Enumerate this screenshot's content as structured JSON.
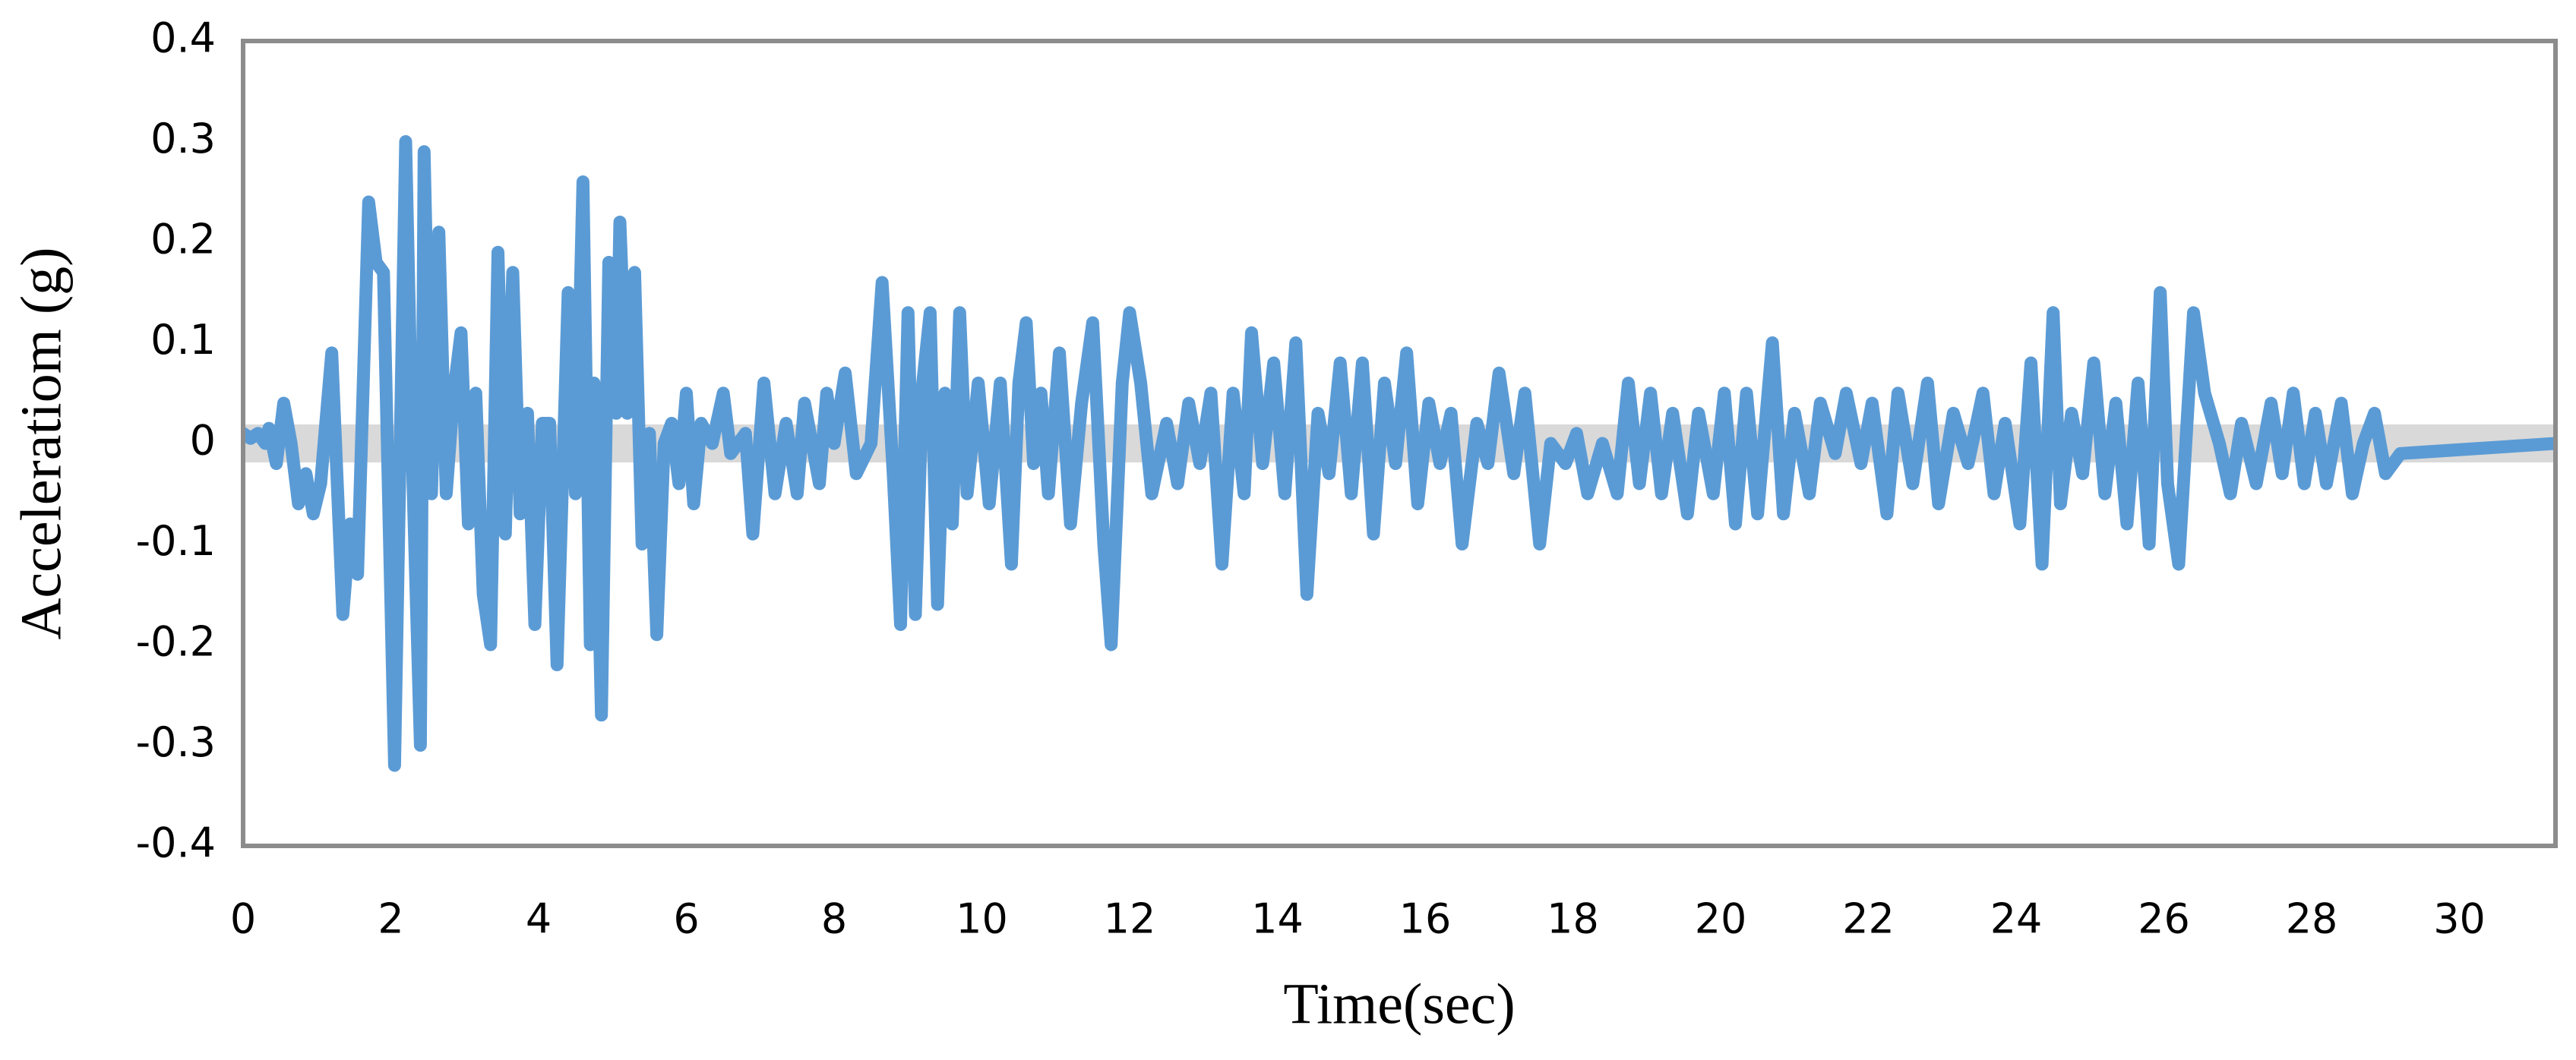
{
  "chart_data": {
    "type": "line",
    "x_label": "Time(sec)",
    "y_label": "Acceleratiom (g)",
    "xlim": [
      0,
      31.3
    ],
    "ylim": [
      -0.4,
      0.4
    ],
    "xticks": [
      0,
      2,
      4,
      6,
      8,
      10,
      12,
      14,
      16,
      18,
      20,
      22,
      24,
      26,
      28,
      30
    ],
    "yticks": [
      -0.4,
      -0.3,
      -0.2,
      -0.1,
      0,
      0.1,
      0.2,
      0.3,
      0.4
    ],
    "grid": false,
    "series": [
      {
        "color": "#d9d9d9",
        "x": [
          0,
          31.3
        ],
        "values": [
          0,
          0
        ]
      },
      {
        "color": "#5b9bd5",
        "x": [
          0,
          0.1,
          0.2,
          0.3,
          0.35,
          0.45,
          0.55,
          0.65,
          0.75,
          0.85,
          0.95,
          1.05,
          1.2,
          1.35,
          1.45,
          1.55,
          1.7,
          1.8,
          1.9,
          2.05,
          2.2,
          2.3,
          2.4,
          2.45,
          2.55,
          2.65,
          2.75,
          2.85,
          2.95,
          3.05,
          3.15,
          3.25,
          3.35,
          3.45,
          3.55,
          3.65,
          3.75,
          3.85,
          3.95,
          4.05,
          4.15,
          4.25,
          4.4,
          4.5,
          4.6,
          4.7,
          4.75,
          4.85,
          4.95,
          5.05,
          5.1,
          5.2,
          5.3,
          5.4,
          5.5,
          5.6,
          5.7,
          5.8,
          5.9,
          6.0,
          6.1,
          6.2,
          6.35,
          6.5,
          6.6,
          6.8,
          6.9,
          7.05,
          7.2,
          7.35,
          7.5,
          7.6,
          7.8,
          7.9,
          8.0,
          8.15,
          8.3,
          8.5,
          8.65,
          8.8,
          8.9,
          9.0,
          9.1,
          9.2,
          9.3,
          9.4,
          9.5,
          9.6,
          9.7,
          9.8,
          9.95,
          10.1,
          10.25,
          10.4,
          10.5,
          10.6,
          10.7,
          10.8,
          10.9,
          11.05,
          11.2,
          11.35,
          11.5,
          11.65,
          11.75,
          11.9,
          12.0,
          12.15,
          12.3,
          12.5,
          12.65,
          12.8,
          12.95,
          13.1,
          13.25,
          13.4,
          13.55,
          13.65,
          13.8,
          13.95,
          14.1,
          14.25,
          14.4,
          14.55,
          14.7,
          14.85,
          15.0,
          15.15,
          15.3,
          15.45,
          15.6,
          15.75,
          15.9,
          16.05,
          16.2,
          16.35,
          16.5,
          16.7,
          16.85,
          17.0,
          17.2,
          17.35,
          17.55,
          17.7,
          17.9,
          18.05,
          18.2,
          18.4,
          18.6,
          18.75,
          18.9,
          19.05,
          19.2,
          19.35,
          19.55,
          19.7,
          19.9,
          20.05,
          20.2,
          20.35,
          20.5,
          20.7,
          20.85,
          21.0,
          21.2,
          21.35,
          21.55,
          21.7,
          21.9,
          22.05,
          22.25,
          22.4,
          22.6,
          22.8,
          22.95,
          23.15,
          23.35,
          23.55,
          23.7,
          23.85,
          24.05,
          24.2,
          24.35,
          24.5,
          24.6,
          24.75,
          24.9,
          25.05,
          25.2,
          25.35,
          25.5,
          25.65,
          25.8,
          25.95,
          26.05,
          26.2,
          26.4,
          26.55,
          26.75,
          26.9,
          27.05,
          27.25,
          27.45,
          27.6,
          27.75,
          27.9,
          28.05,
          28.2,
          28.4,
          28.55,
          28.7,
          28.85,
          29.0,
          29.2,
          31.3
        ],
        "values": [
          0.01,
          0.005,
          0.01,
          0.0,
          0.015,
          -0.02,
          0.04,
          0.0,
          -0.06,
          -0.03,
          -0.07,
          -0.04,
          0.09,
          -0.17,
          -0.08,
          -0.13,
          0.24,
          0.18,
          0.17,
          -0.32,
          0.3,
          -0.04,
          -0.3,
          0.29,
          -0.05,
          0.21,
          -0.05,
          0.05,
          0.11,
          -0.08,
          0.05,
          -0.15,
          -0.2,
          0.19,
          -0.09,
          0.17,
          -0.07,
          0.03,
          -0.18,
          0.02,
          0.02,
          -0.22,
          0.15,
          -0.05,
          0.26,
          -0.2,
          0.06,
          -0.27,
          0.18,
          0.03,
          0.22,
          0.03,
          0.17,
          -0.1,
          0.01,
          -0.19,
          0.0,
          0.02,
          -0.04,
          0.05,
          -0.06,
          0.02,
          0.0,
          0.05,
          -0.01,
          0.01,
          -0.09,
          0.06,
          -0.05,
          0.02,
          -0.05,
          0.04,
          -0.04,
          0.05,
          0.0,
          0.07,
          -0.03,
          0.0,
          0.16,
          -0.03,
          -0.18,
          0.13,
          -0.17,
          0.06,
          0.13,
          -0.16,
          0.05,
          -0.08,
          0.13,
          -0.05,
          0.06,
          -0.06,
          0.06,
          -0.12,
          0.06,
          0.12,
          -0.02,
          0.05,
          -0.05,
          0.09,
          -0.08,
          0.04,
          0.12,
          -0.1,
          -0.2,
          0.06,
          0.13,
          0.06,
          -0.05,
          0.02,
          -0.04,
          0.04,
          -0.02,
          0.05,
          -0.12,
          0.05,
          -0.05,
          0.11,
          -0.02,
          0.08,
          -0.05,
          0.1,
          -0.15,
          0.03,
          -0.03,
          0.08,
          -0.05,
          0.08,
          -0.09,
          0.06,
          -0.02,
          0.09,
          -0.06,
          0.04,
          -0.02,
          0.03,
          -0.1,
          0.02,
          -0.02,
          0.07,
          -0.03,
          0.05,
          -0.1,
          0.0,
          -0.02,
          0.01,
          -0.05,
          0.0,
          -0.05,
          0.06,
          -0.04,
          0.05,
          -0.05,
          0.03,
          -0.07,
          0.03,
          -0.05,
          0.05,
          -0.08,
          0.05,
          -0.07,
          0.1,
          -0.07,
          0.03,
          -0.05,
          0.04,
          -0.01,
          0.05,
          -0.02,
          0.04,
          -0.07,
          0.05,
          -0.04,
          0.06,
          -0.06,
          0.03,
          -0.02,
          0.05,
          -0.05,
          0.02,
          -0.08,
          0.08,
          -0.12,
          0.13,
          -0.06,
          0.03,
          -0.03,
          0.08,
          -0.05,
          0.04,
          -0.08,
          0.06,
          -0.1,
          0.15,
          -0.04,
          -0.12,
          0.13,
          0.05,
          0.0,
          -0.05,
          0.02,
          -0.04,
          0.04,
          -0.03,
          0.05,
          -0.04,
          0.03,
          -0.04,
          0.04,
          -0.05,
          0.0,
          0.03,
          -0.03,
          -0.01,
          0.0
        ]
      }
    ]
  }
}
